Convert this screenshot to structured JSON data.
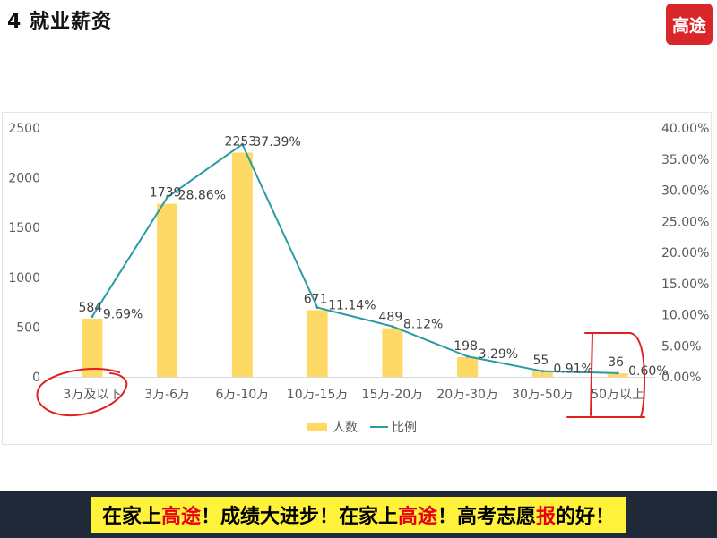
{
  "slide": {
    "title": "4 就业薪资"
  },
  "logo": {
    "text": "高途"
  },
  "banner": {
    "segments": [
      {
        "text": "在家上",
        "highlight": false
      },
      {
        "text": "高途",
        "highlight": true
      },
      {
        "text": "！成绩大进步！在家上",
        "highlight": false
      },
      {
        "text": "高途",
        "highlight": true
      },
      {
        "text": "！高考志愿",
        "highlight": false
      },
      {
        "text": "报",
        "highlight": true
      },
      {
        "text": "的好！",
        "highlight": false
      }
    ]
  },
  "colors": {
    "bar": "#ffd966",
    "line": "#2a9aa5",
    "annotation": "#e02020",
    "logo": "#d9262b"
  },
  "chart_data": {
    "type": "bar",
    "categories": [
      "3万及以下",
      "3万-6万",
      "6万-10万",
      "10万-15万",
      "15万-20万",
      "20万-30万",
      "30万-50万",
      "50万以上"
    ],
    "series": [
      {
        "name": "人数",
        "type": "bar",
        "axis": "left",
        "values": [
          584,
          1739,
          2253,
          671,
          489,
          198,
          55,
          36
        ]
      },
      {
        "name": "比例",
        "type": "line",
        "axis": "right",
        "values": [
          9.69,
          28.86,
          37.39,
          11.14,
          8.12,
          3.29,
          0.91,
          0.6
        ]
      }
    ],
    "data_labels_left": [
      "584",
      "1739",
      "2253",
      "671",
      "489",
      "198",
      "55",
      "36"
    ],
    "data_labels_right": [
      "9.69%",
      "28.86%",
      "37.39%",
      "11.14%",
      "8.12%",
      "3.29%",
      "0.91%",
      "0.60%"
    ],
    "left_ticks": [
      "0",
      "500",
      "1000",
      "1500",
      "2000",
      "2500"
    ],
    "right_ticks": [
      "0.00%",
      "5.00%",
      "10.00%",
      "15.00%",
      "20.00%",
      "25.00%",
      "30.00%",
      "35.00%",
      "40.00%"
    ],
    "ylim_left": [
      0,
      2500
    ],
    "ylim_right": [
      0,
      40
    ],
    "legend": [
      "人数",
      "比例"
    ],
    "legend_position": "bottom",
    "grid": false,
    "annotations": [
      "red circle around 3万及以下",
      "red bracket around 50万以上"
    ]
  }
}
